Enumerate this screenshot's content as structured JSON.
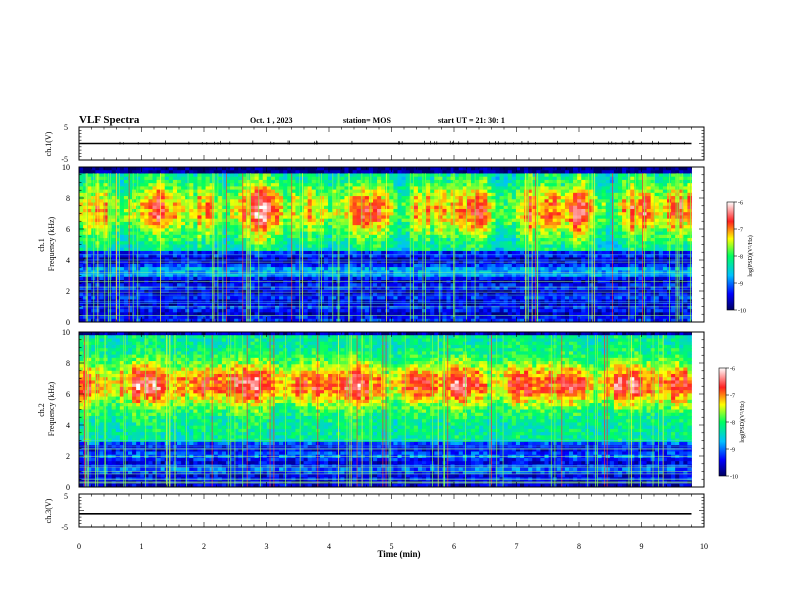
{
  "header": {
    "title": "VLF Spectra",
    "date": "Oct. 1 , 2023",
    "station": "station= MOS",
    "start": "start UT = 21: 30: 1"
  },
  "colors": {
    "spectrum_low": "#00008b",
    "spectrum_mid": "#00ff66",
    "spectrum_high": "#ff2020",
    "trace": "#000000",
    "background": "#ffffff"
  },
  "chart_data": [
    {
      "type": "line",
      "name": "ch1-voltage",
      "ylabel": "ch.1(V)",
      "ylim": [
        -5,
        5
      ],
      "yticks": [
        {
          "v": 5,
          "label": "5"
        },
        {
          "v": -5,
          "label": "-5"
        }
      ],
      "x": [
        0,
        9.8
      ],
      "values": [
        0,
        0
      ],
      "xlim": [
        0,
        10
      ]
    },
    {
      "type": "heatmap",
      "name": "ch1-spectrogram",
      "ylabel": "ch.1\nFrequency (kHz)",
      "ylim": [
        0,
        10
      ],
      "yticks": [
        {
          "v": 0,
          "label": "0"
        },
        {
          "v": 2,
          "label": "2"
        },
        {
          "v": 4,
          "label": "4"
        },
        {
          "v": 6,
          "label": "6"
        },
        {
          "v": 8,
          "label": "8"
        },
        {
          "v": 10,
          "label": "10"
        }
      ],
      "xlim": [
        0,
        10
      ],
      "data_end_min": 9.8,
      "emission_band_khz": [
        4.5,
        9.6
      ],
      "colorbar": {
        "label": "log(PSD)(V²/Hz)",
        "range": [
          -10,
          -6
        ],
        "ticks": [
          {
            "v": -6,
            "label": "-6"
          },
          {
            "v": -7,
            "label": "-7"
          },
          {
            "v": -8,
            "label": "-8"
          },
          {
            "v": -9,
            "label": "-9"
          },
          {
            "v": -10,
            "label": "-10"
          }
        ]
      }
    },
    {
      "type": "heatmap",
      "name": "ch2-spectrogram",
      "ylabel": "ch.2\nFrequency (kHz)",
      "ylim": [
        0,
        10
      ],
      "yticks": [
        {
          "v": 0,
          "label": "0"
        },
        {
          "v": 2,
          "label": "2"
        },
        {
          "v": 4,
          "label": "4"
        },
        {
          "v": 6,
          "label": "6"
        },
        {
          "v": 8,
          "label": "8"
        },
        {
          "v": 10,
          "label": "10"
        }
      ],
      "xlim": [
        0,
        10
      ],
      "data_end_min": 9.8,
      "emission_band_khz": [
        3.0,
        9.8
      ],
      "colorbar": {
        "label": "log(PSD)(V²/Hz)",
        "range": [
          -10,
          -6
        ],
        "ticks": [
          {
            "v": -6,
            "label": "-6"
          },
          {
            "v": -7,
            "label": "-7"
          },
          {
            "v": -8,
            "label": "-8"
          },
          {
            "v": -9,
            "label": "-9"
          },
          {
            "v": -10,
            "label": "-10"
          }
        ]
      }
    },
    {
      "type": "line",
      "name": "ch3-voltage",
      "ylabel": "ch.3(V)",
      "ylim": [
        -5,
        5
      ],
      "yticks": [
        {
          "v": 5,
          "label": "5"
        },
        {
          "v": -5,
          "label": "-5"
        }
      ],
      "x": [
        0,
        9.8
      ],
      "values": [
        -1,
        -1
      ],
      "xlim": [
        0,
        10
      ],
      "xlabel": "Time (min)",
      "xticks": [
        {
          "v": 0,
          "label": "0"
        },
        {
          "v": 1,
          "label": "1"
        },
        {
          "v": 2,
          "label": "2"
        },
        {
          "v": 3,
          "label": "3"
        },
        {
          "v": 4,
          "label": "4"
        },
        {
          "v": 5,
          "label": "5"
        },
        {
          "v": 6,
          "label": "6"
        },
        {
          "v": 7,
          "label": "7"
        },
        {
          "v": 8,
          "label": "8"
        },
        {
          "v": 9,
          "label": "9"
        },
        {
          "v": 10,
          "label": "10"
        }
      ]
    }
  ]
}
